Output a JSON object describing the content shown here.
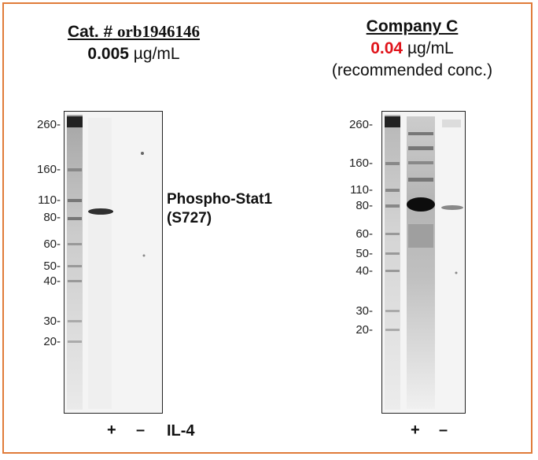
{
  "left_panel": {
    "title_prefix": "Cat. #",
    "title_catalog": "orb1946146",
    "conc_value": "0.005",
    "conc_unit": "µg/mL",
    "markers": [
      "260-",
      "160-",
      "110-",
      "80-",
      "60-",
      "50-",
      "40-",
      "30-",
      "20-"
    ],
    "target_line1": "Phospho-Stat1",
    "target_line2": "(S727)",
    "lane_plus": "+",
    "lane_minus": "–",
    "treatment": "IL-4"
  },
  "right_panel": {
    "title": "Company C",
    "conc_value": "0.04",
    "conc_unit": "µg/mL",
    "note": "(recommended conc.)",
    "markers": [
      "260-",
      "160-",
      "110-",
      "80-",
      "60-",
      "50-",
      "40-",
      "30-",
      "20-"
    ],
    "lane_plus": "+",
    "lane_minus": "–"
  },
  "colors": {
    "frame": "#e07b39",
    "highlight": "#e0141b"
  }
}
